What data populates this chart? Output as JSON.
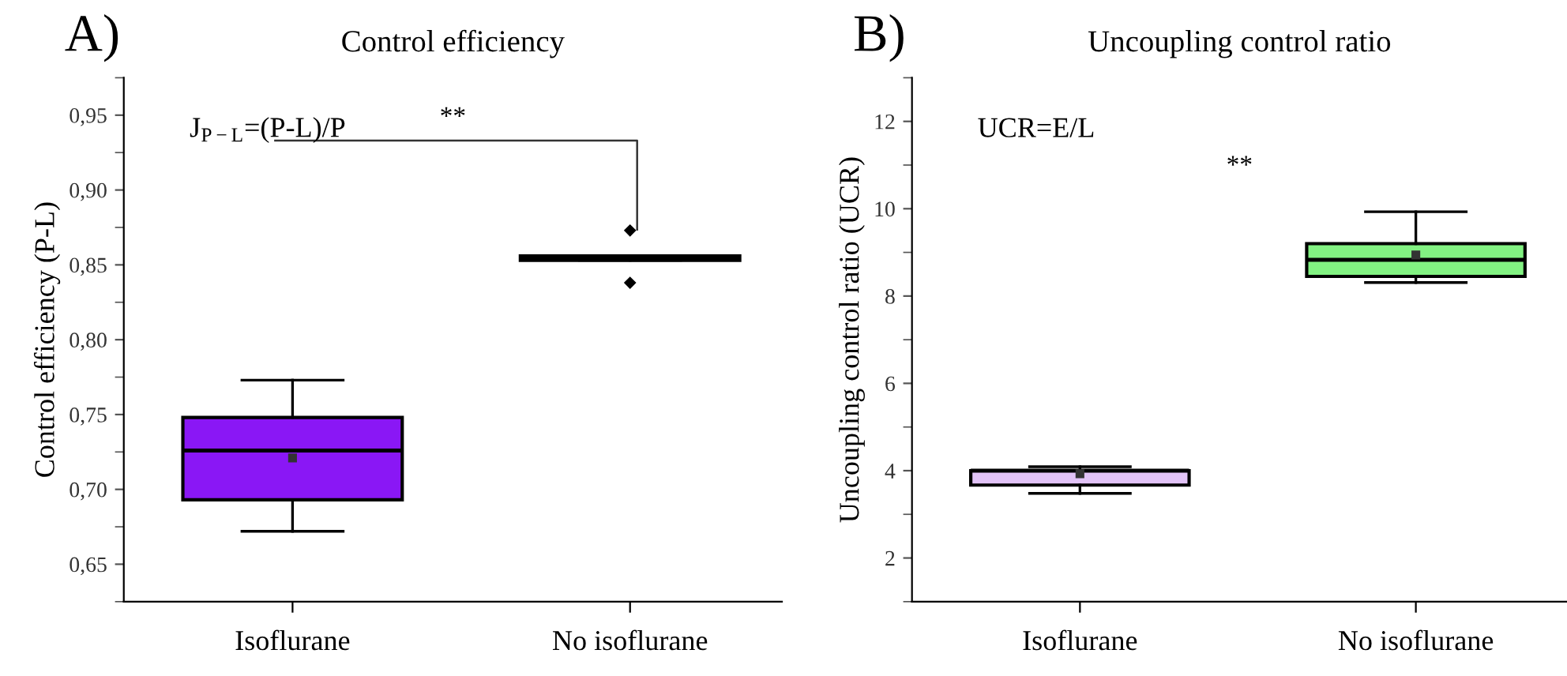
{
  "chart_data": [
    {
      "type": "box",
      "title": "Control efficiency",
      "ylabel": "Control efficiency (P-L)",
      "categories": [
        "Isoflurane",
        "No isoflurane"
      ],
      "colors": [
        "#8a17f5",
        "#4d7a3e"
      ],
      "boxes": [
        {
          "low": 0.672,
          "q1": 0.693,
          "median": 0.726,
          "q3": 0.748,
          "high": 0.773,
          "mean": 0.721
        },
        {
          "low": 0.853,
          "q1": 0.853,
          "median": 0.855,
          "q3": 0.856,
          "high": 0.856,
          "outliers": [
            0.873,
            0.838
          ]
        }
      ],
      "ylim": [
        0.625,
        0.975
      ],
      "yticks": [
        {
          "value": 0.65,
          "label": "0,65"
        },
        {
          "value": 0.7,
          "label": "0,70"
        },
        {
          "value": 0.75,
          "label": "0,75"
        },
        {
          "value": 0.8,
          "label": "0,80"
        },
        {
          "value": 0.85,
          "label": "0,85"
        },
        {
          "value": 0.9,
          "label": "0,90"
        },
        {
          "value": 0.95,
          "label": "0,95"
        }
      ],
      "grid": false,
      "legend": false,
      "annotations": [
        "A)",
        "J$_{P−L}$=(P-L)/P",
        "**"
      ]
    },
    {
      "type": "box",
      "title": "Uncoupling control ratio",
      "ylabel": "Uncoupling control ratio (UCR)",
      "categories": [
        "Isoflurane",
        "No isoflurane"
      ],
      "colors": [
        "#e2c3f7",
        "#82f282"
      ],
      "boxes": [
        {
          "low": 3.48,
          "q1": 3.67,
          "median": 4.0,
          "q3": 4.0,
          "high": 4.09,
          "mean": 3.93
        },
        {
          "low": 8.31,
          "q1": 8.45,
          "median": 8.83,
          "q3": 9.2,
          "high": 9.93,
          "mean": 8.94
        }
      ],
      "ylim": [
        1,
        13
      ],
      "yticks": [
        2,
        4,
        6,
        8,
        10,
        12
      ],
      "grid": false,
      "legend": false,
      "annotations": [
        "B)",
        "UCR=E/L",
        "**"
      ]
    }
  ]
}
